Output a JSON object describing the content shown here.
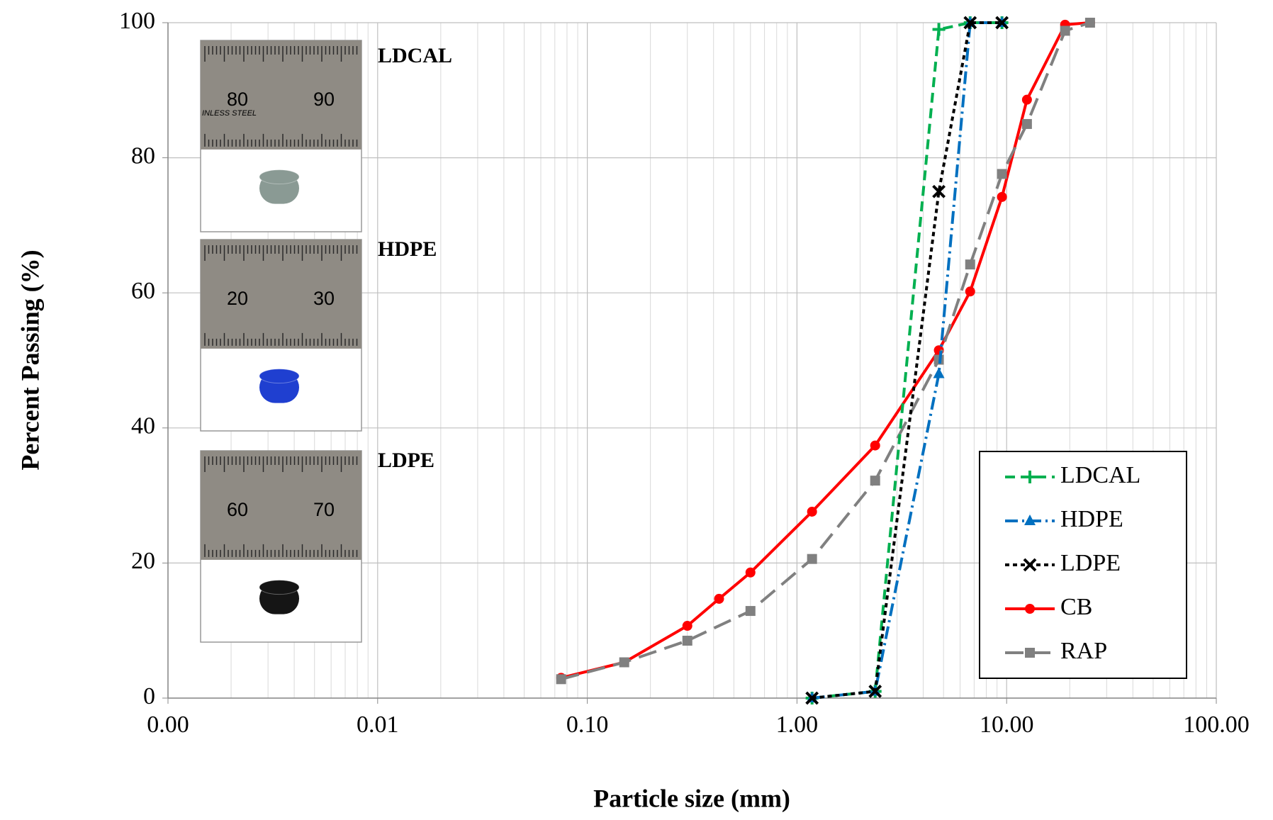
{
  "chart_data": {
    "type": "line",
    "x_label": "Particle size (mm)",
    "y_label": "Percent Passing (%)",
    "xscale": "log",
    "grid": true,
    "legend": "lower right",
    "xlim": [
      0.001,
      100
    ],
    "xticks": [
      {
        "value": 0.001,
        "label": "0.00"
      },
      {
        "value": 0.01,
        "label": "0.01"
      },
      {
        "value": 0.1,
        "label": "0.10"
      },
      {
        "value": 1,
        "label": "1.00"
      },
      {
        "value": 10,
        "label": "10.00"
      },
      {
        "value": 100,
        "label": "100.00"
      }
    ],
    "ylim": [
      0,
      100
    ],
    "yticks": [
      0,
      20,
      40,
      60,
      80,
      100
    ],
    "insets": [
      {
        "label": "LDCAL",
        "ruler": [
          "80",
          "90"
        ],
        "stamp": "INLESS STEEL",
        "color": "#8a9a94"
      },
      {
        "label": "HDPE",
        "ruler": [
          "20",
          "30"
        ],
        "color": "#1f3fd0"
      },
      {
        "label": "LDPE",
        "ruler": [
          "60",
          "70"
        ],
        "color": "#151515"
      }
    ],
    "series": [
      {
        "name": "LDCAL",
        "color": "#00b050",
        "dash": "14 8",
        "marker": "plus",
        "x": [
          1.18,
          2.36,
          4.75,
          6.7,
          9.5
        ],
        "values": [
          0,
          1,
          99,
          100,
          100
        ]
      },
      {
        "name": "HDPE",
        "color": "#0070c0",
        "dash": "18 6 3 6",
        "marker": "triangle",
        "x": [
          1.18,
          2.36,
          4.75,
          6.7,
          9.5
        ],
        "values": [
          0,
          1,
          48,
          100,
          100
        ]
      },
      {
        "name": "LDPE",
        "color": "#000000",
        "dash": "6 5",
        "marker": "cross",
        "x": [
          1.18,
          2.36,
          4.75,
          6.7,
          9.5
        ],
        "values": [
          0,
          1,
          75,
          100,
          100
        ]
      },
      {
        "name": "CB",
        "color": "#ff0000",
        "dash": "none",
        "marker": "circle",
        "x": [
          0.075,
          0.15,
          0.3,
          0.425,
          0.6,
          1.18,
          2.36,
          4.75,
          6.7,
          9.5,
          12.5,
          19,
          25
        ],
        "values": [
          3,
          5.3,
          10.7,
          14.7,
          18.6,
          27.6,
          37.4,
          51.5,
          60.2,
          74.2,
          88.6,
          99.7,
          100
        ]
      },
      {
        "name": "RAP",
        "color": "#808080",
        "dash": "26 12",
        "marker": "square",
        "x": [
          0.075,
          0.15,
          0.3,
          0.6,
          1.18,
          2.36,
          4.75,
          6.7,
          9.5,
          12.5,
          19,
          25
        ],
        "values": [
          2.8,
          5.3,
          8.5,
          12.9,
          20.6,
          32.2,
          50.1,
          64.2,
          77.6,
          85,
          98.8,
          100
        ]
      }
    ]
  }
}
